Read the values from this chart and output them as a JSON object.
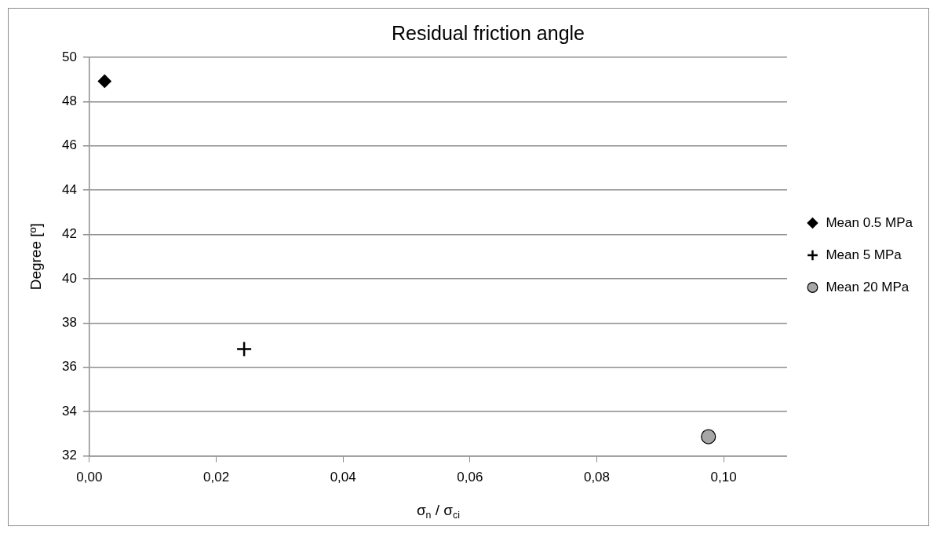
{
  "chart_data": {
    "type": "scatter",
    "title": "Residual friction angle",
    "xlabel": "σ$_{n}$ / σ$_{ci}$",
    "ylabel": "Degree [º]",
    "series": [
      {
        "name": "Mean 0.5 MPa",
        "color": "#000000",
        "marker": "diamond",
        "x": [
          0.0024
        ],
        "values": [
          48.92
        ]
      },
      {
        "name": "Mean 5 MPa",
        "color": "#000000",
        "marker": "cross",
        "x": [
          0.0244
        ],
        "values": [
          36.83
        ]
      },
      {
        "name": "Mean 20 MPa",
        "color": "#a6a6a6",
        "marker": "circle",
        "x": [
          0.0976
        ],
        "values": [
          32.87
        ]
      }
    ],
    "xlim": [
      0,
      0.11
    ],
    "xticks": [
      {
        "value": 0,
        "label": "0,00"
      },
      {
        "value": 0.02,
        "label": "0,02"
      },
      {
        "value": 0.04,
        "label": "0,04"
      },
      {
        "value": 0.06,
        "label": "0,06"
      },
      {
        "value": 0.08,
        "label": "0,08"
      },
      {
        "value": 0.1,
        "label": "0,10"
      }
    ],
    "ylim": [
      32,
      50
    ],
    "yticks": [
      32,
      34,
      36,
      38,
      40,
      42,
      44,
      46,
      48,
      50
    ],
    "grid": "y",
    "legend": "right"
  }
}
